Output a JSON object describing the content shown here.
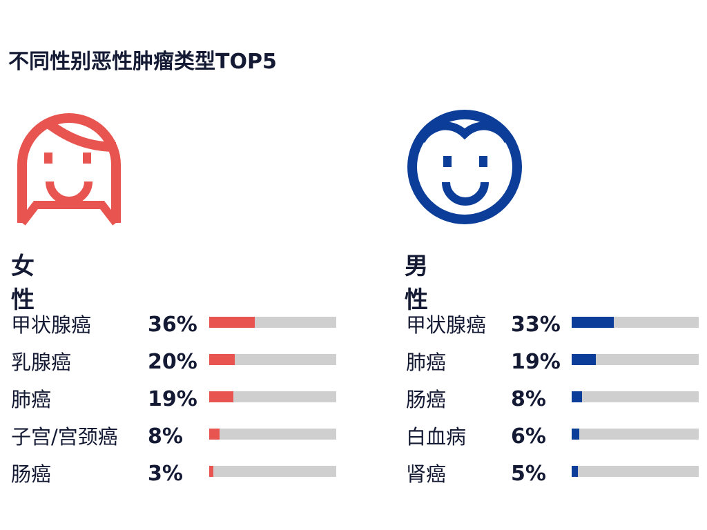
{
  "title": "不同性别恶性肿瘤类型TOP5",
  "colors": {
    "female": "#e8544f",
    "male": "#0b3d99",
    "track": "#cfcfcf",
    "text": "#141a33"
  },
  "icons": {
    "female": "woman-face-icon",
    "male": "man-face-icon"
  },
  "female": {
    "label": "女性"
  },
  "male": {
    "label": "男性"
  },
  "chart_data": [
    {
      "type": "bar",
      "title": "女性",
      "categories": [
        "甲状腺癌",
        "乳腺癌",
        "肺癌",
        "子宫/宫颈癌",
        "肠癌"
      ],
      "values": [
        36,
        20,
        19,
        8,
        3
      ],
      "value_labels": [
        "36%",
        "20%",
        "19%",
        "8%",
        "3%"
      ],
      "xlim": [
        0,
        100
      ],
      "orientation": "horizontal",
      "color": "#e8544f"
    },
    {
      "type": "bar",
      "title": "男性",
      "categories": [
        "甲状腺癌",
        "肺癌",
        "肠癌",
        "白血病",
        "肾癌"
      ],
      "values": [
        33,
        19,
        8,
        6,
        5
      ],
      "value_labels": [
        "33%",
        "19%",
        "8%",
        "6%",
        "5%"
      ],
      "xlim": [
        0,
        100
      ],
      "orientation": "horizontal",
      "color": "#0b3d99"
    }
  ]
}
